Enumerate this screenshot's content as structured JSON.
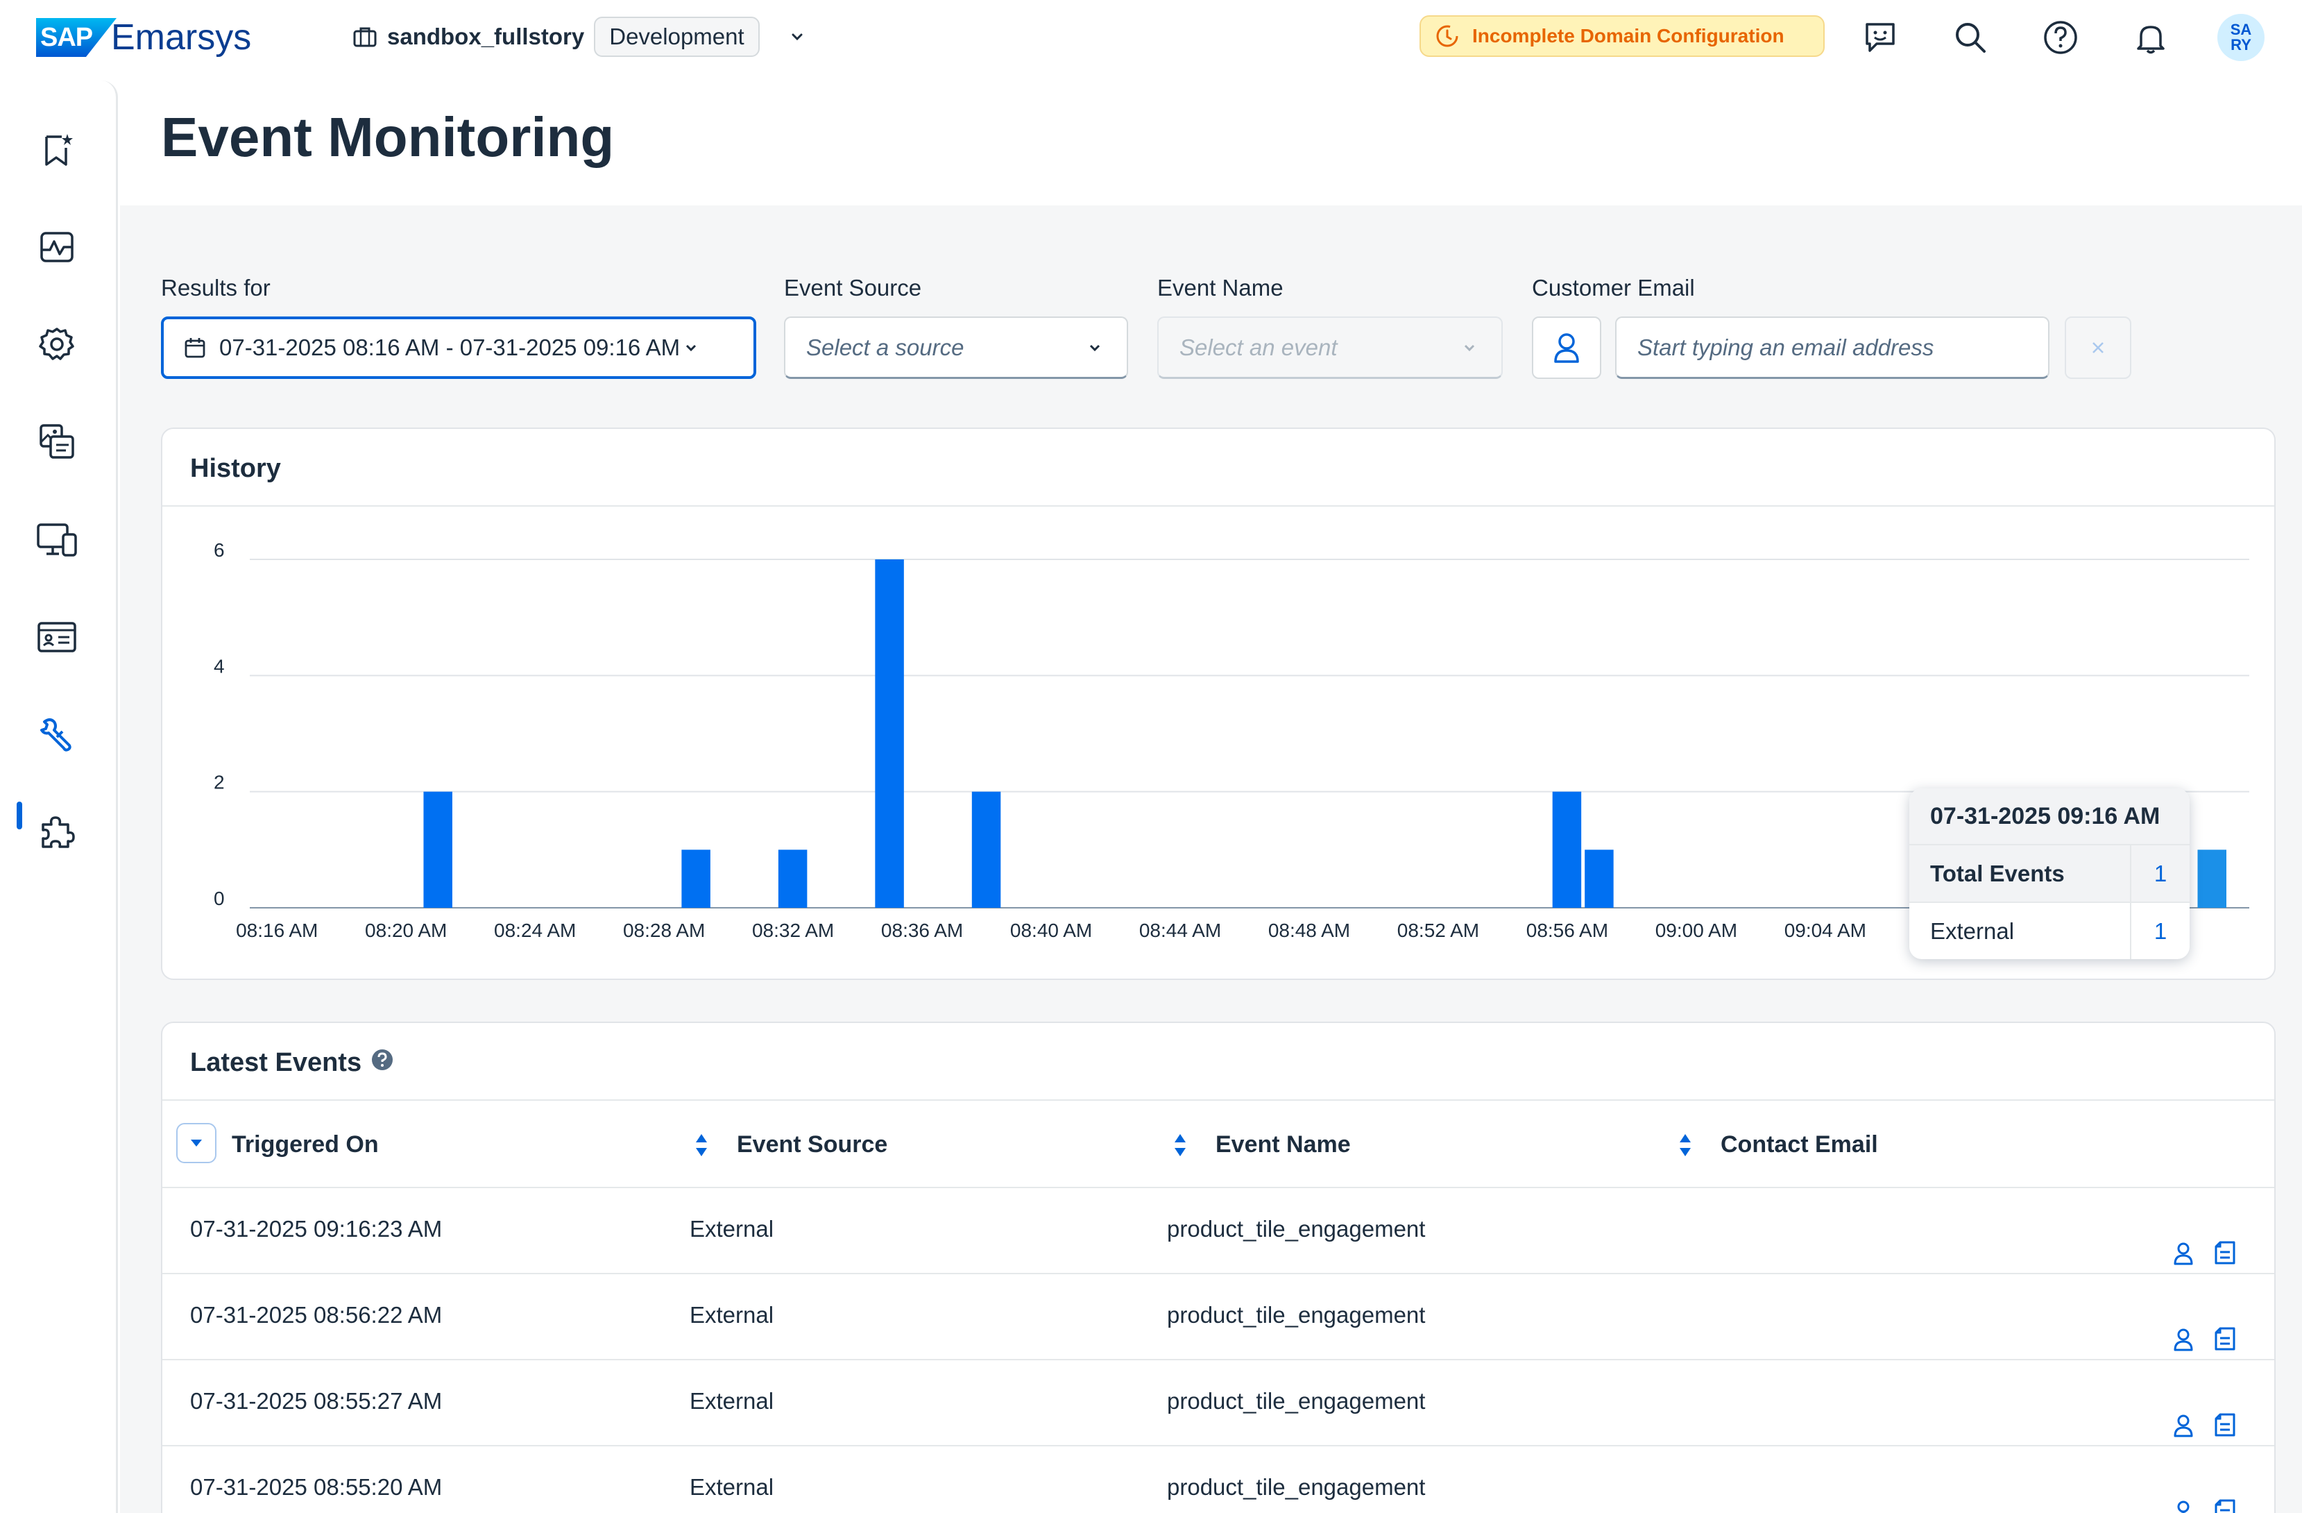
{
  "header": {
    "brand_badge": "SAP",
    "brand_name": "Emarsys",
    "workspace": "sandbox_fullstory",
    "environment": "Development",
    "warning": "Incomplete Domain Configuration",
    "avatar_line1": "SA",
    "avatar_line2": "RY"
  },
  "page": {
    "title": "Event Monitoring"
  },
  "filters": {
    "results_label": "Results for",
    "date_range": "07-31-2025 08:16 AM - 07-31-2025 09:16 AM",
    "source_label": "Event Source",
    "source_placeholder": "Select a source",
    "event_label": "Event Name",
    "event_placeholder": "Select an event",
    "email_label": "Customer Email",
    "email_placeholder": "Start typing an email address"
  },
  "history": {
    "title": "History",
    "tooltip": {
      "time": "07-31-2025 09:16 AM",
      "total_label": "Total Events",
      "total_value": "1",
      "row_label": "External",
      "row_value": "1"
    }
  },
  "chart_data": {
    "type": "bar",
    "x": [
      "08:16 AM",
      "08:17 AM",
      "08:18 AM",
      "08:19 AM",
      "08:20 AM",
      "08:21 AM",
      "08:22 AM",
      "08:23 AM",
      "08:24 AM",
      "08:25 AM",
      "08:26 AM",
      "08:27 AM",
      "08:28 AM",
      "08:29 AM",
      "08:30 AM",
      "08:31 AM",
      "08:32 AM",
      "08:33 AM",
      "08:34 AM",
      "08:35 AM",
      "08:36 AM",
      "08:37 AM",
      "08:38 AM",
      "08:39 AM",
      "08:40 AM",
      "08:41 AM",
      "08:42 AM",
      "08:43 AM",
      "08:44 AM",
      "08:45 AM",
      "08:46 AM",
      "08:47 AM",
      "08:48 AM",
      "08:49 AM",
      "08:50 AM",
      "08:51 AM",
      "08:52 AM",
      "08:53 AM",
      "08:54 AM",
      "08:55 AM",
      "08:56 AM",
      "08:57 AM",
      "08:58 AM",
      "08:59 AM",
      "09:00 AM",
      "09:01 AM",
      "09:02 AM",
      "09:03 AM",
      "09:04 AM",
      "09:05 AM",
      "09:06 AM",
      "09:07 AM",
      "09:08 AM",
      "09:09 AM",
      "09:10 AM",
      "09:11 AM",
      "09:12 AM",
      "09:13 AM",
      "09:14 AM",
      "09:15 AM",
      "09:16 AM"
    ],
    "values": [
      0,
      0,
      0,
      0,
      0,
      2,
      0,
      0,
      0,
      0,
      0,
      0,
      0,
      1,
      0,
      0,
      1,
      0,
      0,
      6,
      0,
      0,
      2,
      0,
      0,
      0,
      0,
      0,
      0,
      0,
      0,
      0,
      0,
      0,
      0,
      0,
      0,
      0,
      0,
      0,
      2,
      1,
      0,
      0,
      0,
      0,
      0,
      0,
      0,
      0,
      0,
      0,
      0,
      0,
      0,
      0,
      0,
      0,
      0,
      0,
      1
    ],
    "tick_labels": [
      "08:16 AM",
      "08:20 AM",
      "08:24 AM",
      "08:28 AM",
      "08:32 AM",
      "08:36 AM",
      "08:40 AM",
      "08:44 AM",
      "08:48 AM",
      "08:52 AM",
      "08:56 AM",
      "09:00 AM",
      "09:04 AM"
    ],
    "y_ticks": [
      "0",
      "2",
      "4",
      "6"
    ],
    "ylim": [
      0,
      6
    ],
    "grid": true,
    "colors": {
      "bar": "#0070f2",
      "bar_highlight": "#1b90e8"
    }
  },
  "latest_events": {
    "title": "Latest Events",
    "columns": [
      "Triggered On",
      "Event Source",
      "Event Name",
      "Contact Email"
    ],
    "rows": [
      {
        "triggered_on": "07-31-2025 09:16:23 AM",
        "source": "External",
        "name": "product_tile_engagement",
        "email": ""
      },
      {
        "triggered_on": "07-31-2025 08:56:22 AM",
        "source": "External",
        "name": "product_tile_engagement",
        "email": ""
      },
      {
        "triggered_on": "07-31-2025 08:55:27 AM",
        "source": "External",
        "name": "product_tile_engagement",
        "email": ""
      },
      {
        "triggered_on": "07-31-2025 08:55:20 AM",
        "source": "External",
        "name": "product_tile_engagement",
        "email": ""
      }
    ]
  },
  "sidebar": {
    "icons": [
      "bookmark-star-icon",
      "analytics-icon",
      "settings-icon",
      "content-media-icon",
      "devices-icon",
      "contacts-card-icon",
      "tools-icon",
      "plugin-icon"
    ]
  },
  "colors": {
    "accent": "#0064d9",
    "warning_text": "#e76500",
    "warning_bg": "#fff3b8"
  }
}
